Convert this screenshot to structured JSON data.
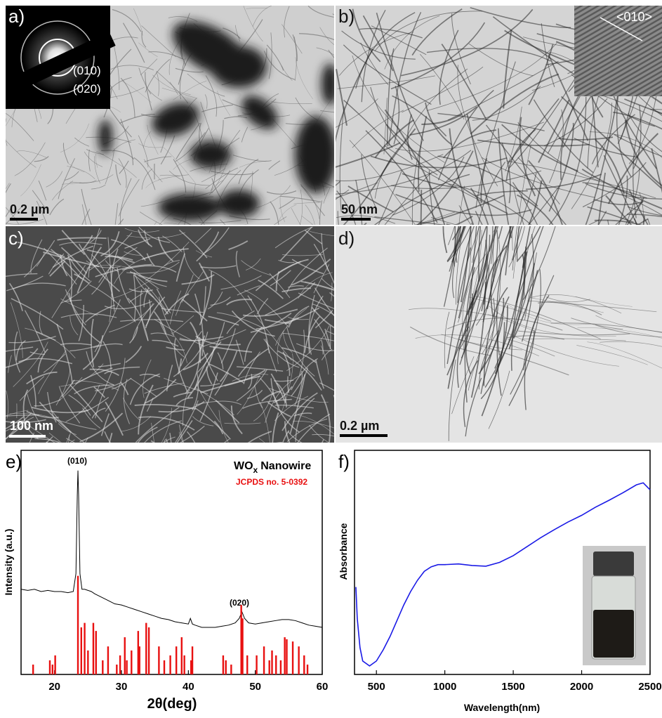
{
  "panels": [
    {
      "label": "a)",
      "scale_bar": "0.2 µm",
      "inset_labels": [
        "(010)",
        "(020)"
      ]
    },
    {
      "label": "b)",
      "scale_bar": "50 nm",
      "inset_labels": [
        "<010>"
      ]
    },
    {
      "label": "c)",
      "scale_bar": "100 nm"
    },
    {
      "label": "d)",
      "scale_bar": "0.2 µm"
    }
  ],
  "chart_data": [
    {
      "type": "line",
      "label": "e)",
      "title": "WO",
      "title_subscript": "x",
      "title_suffix": "Nanowire",
      "x_label": "2θ(deg)",
      "y_label": "Intensity (a.u.)",
      "xlim": [
        15,
        60
      ],
      "ylim": [
        0,
        100
      ],
      "xticks": [
        20,
        30,
        40,
        50,
        60
      ],
      "annotations": [
        "(010)",
        "(020)"
      ],
      "series": [
        {
          "type": "line",
          "color": "#000000",
          "x": [
            15,
            16,
            17,
            18,
            19,
            20,
            21,
            22,
            22.8,
            23.2,
            23.4,
            23.5,
            23.6,
            23.8,
            24.1,
            24.5,
            25,
            25.5,
            26,
            27,
            28,
            29,
            30,
            31,
            32,
            33,
            34,
            35,
            36,
            37,
            38,
            39,
            40,
            40.3,
            40.6,
            41,
            42,
            43,
            44,
            45,
            46,
            47,
            47.6,
            48,
            48.4,
            49,
            50,
            51,
            52,
            53,
            54,
            55,
            56,
            57,
            58,
            59,
            60
          ],
          "values": [
            38,
            37.5,
            38,
            37,
            37.5,
            37,
            37,
            36.5,
            37,
            45,
            80,
            91,
            80,
            45,
            38,
            38,
            37.5,
            37,
            36,
            34.5,
            33,
            31.5,
            31,
            30,
            29,
            28,
            27,
            26,
            25,
            24.5,
            23.5,
            23,
            22.5,
            25,
            22.5,
            22,
            21,
            21,
            21,
            21.5,
            22,
            23,
            25,
            28,
            25,
            23,
            22.5,
            23,
            23.5,
            24,
            24.5,
            24.5,
            24,
            23,
            22,
            21.5,
            21
          ]
        },
        {
          "type": "stick",
          "name": "JCPDS no. 5-0392",
          "color": "#e81010",
          "x": [
            16.8,
            19.3,
            19.7,
            20.1,
            23.5,
            24.0,
            24.5,
            25.0,
            25.8,
            26.2,
            27.2,
            28.0,
            29.3,
            29.8,
            30.5,
            30.8,
            31.5,
            32.5,
            32.7,
            33.7,
            34.1,
            35.6,
            36.4,
            37.3,
            38.2,
            39.0,
            39.4,
            40.4,
            40.6,
            45.2,
            45.6,
            46.4,
            47.9,
            48.1,
            48.8,
            50.2,
            51.3,
            52.1,
            52.5,
            53.1,
            53.8,
            54.4,
            54.7,
            55.6,
            56.5,
            57.3,
            57.8
          ],
          "values": [
            4.4,
            6.3,
            4.4,
            8.5,
            44,
            21,
            23,
            10.7,
            23,
            19.4,
            6.3,
            12.5,
            4.4,
            8.5,
            16.6,
            6.3,
            10.7,
            19.4,
            12.5,
            23,
            21,
            12.5,
            6.3,
            8.5,
            12.5,
            16.6,
            8.5,
            6.3,
            12.5,
            8.5,
            6.3,
            4.4,
            31,
            25,
            8.5,
            8.5,
            12.5,
            6.3,
            10.7,
            8.5,
            6.3,
            16.6,
            15.7,
            14.7,
            12.5,
            8.5,
            4.4
          ]
        }
      ]
    },
    {
      "type": "line",
      "label": "f)",
      "x_label": "Wavelength(nm)",
      "y_label": "Absorbance",
      "xlim": [
        340,
        2500
      ],
      "ylim": [
        0,
        100
      ],
      "xticks": [
        500,
        1000,
        1500,
        2000,
        2500
      ],
      "series": [
        {
          "type": "line",
          "color": "#1a1ae6",
          "x": [
            350,
            360,
            380,
            400,
            450,
            500,
            550,
            600,
            650,
            700,
            750,
            800,
            850,
            900,
            950,
            1000,
            1100,
            1200,
            1300,
            1400,
            1500,
            1600,
            1700,
            1800,
            1900,
            2000,
            2100,
            2200,
            2300,
            2400,
            2450,
            2500
          ],
          "values": [
            39,
            25,
            12,
            6,
            3.8,
            6,
            11,
            17,
            24,
            31,
            37,
            42,
            46,
            48,
            49,
            49,
            49.3,
            48.6,
            48.3,
            50,
            53,
            57,
            61,
            64.6,
            68,
            71,
            74.6,
            77.7,
            81,
            84.6,
            85.5,
            82.4
          ]
        }
      ]
    }
  ]
}
